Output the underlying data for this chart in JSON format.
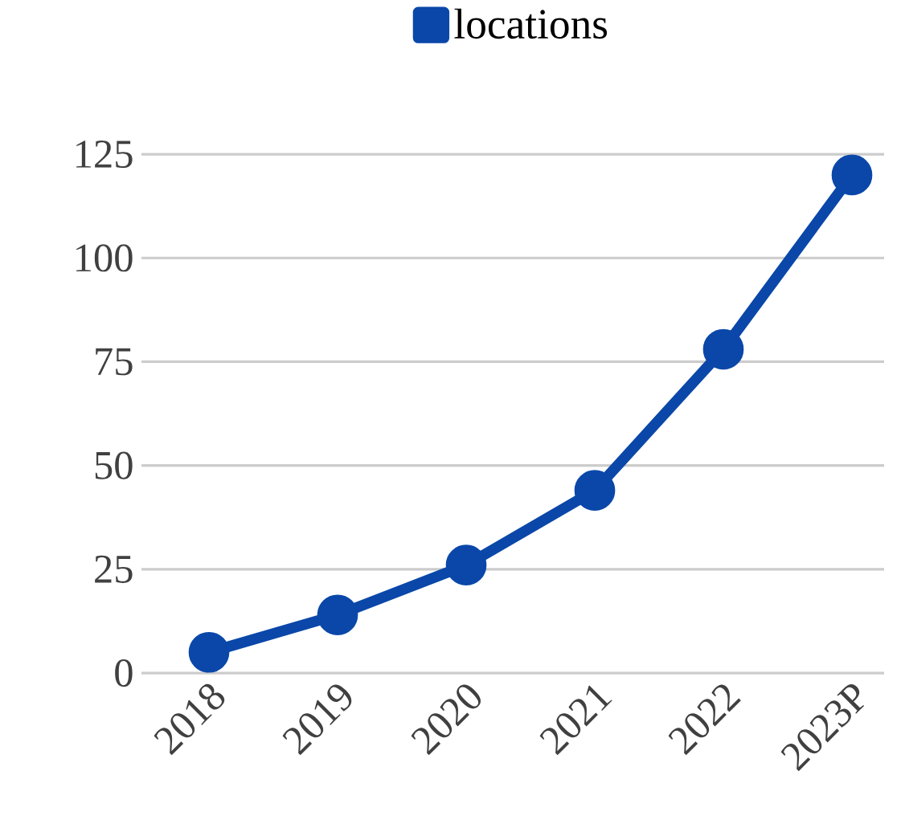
{
  "chart_data": {
    "type": "line",
    "categories": [
      "2018",
      "2019",
      "2020",
      "2021",
      "2022",
      "2023P"
    ],
    "series": [
      {
        "name": "locations",
        "color": "#0a47a9",
        "values": [
          5,
          14,
          26,
          44,
          78,
          120
        ]
      }
    ],
    "ylim": [
      0,
      125
    ],
    "yticks": [
      0,
      25,
      50,
      75,
      100,
      125
    ],
    "grid": "y",
    "legend": "top",
    "marker": "circle"
  }
}
